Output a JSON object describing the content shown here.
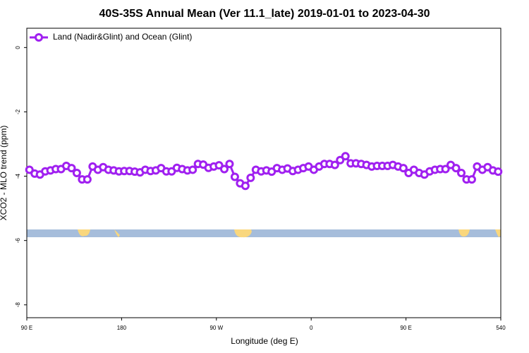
{
  "chart_data": {
    "type": "line",
    "title": "40S-35S Annual Mean (Ver 11.1_late)   2019-01-01 to 2023-04-30",
    "xlabel": "Longitude (deg E)",
    "ylabel": "XCO2 - MLO trend (ppm)",
    "x": [
      92.5,
      97.5,
      102.5,
      107.5,
      112.5,
      117.5,
      122.5,
      127.5,
      132.5,
      137.5,
      142.5,
      147.5,
      152.5,
      157.5,
      162.5,
      167.5,
      172.5,
      177.5,
      182.5,
      187.5,
      192.5,
      197.5,
      202.5,
      207.5,
      212.5,
      217.5,
      222.5,
      227.5,
      232.5,
      237.5,
      242.5,
      247.5,
      252.5,
      257.5,
      262.5,
      267.5,
      272.5,
      277.5,
      282.5,
      287.5,
      292.5,
      297.5,
      302.5,
      307.5,
      312.5,
      317.5,
      322.5,
      327.5,
      332.5,
      337.5,
      342.5,
      347.5,
      352.5,
      357.5,
      362.5,
      367.5,
      372.5,
      377.5,
      382.5,
      387.5,
      392.5,
      397.5,
      402.5,
      407.5,
      412.5,
      417.5,
      422.5,
      427.5,
      432.5,
      437.5,
      442.5,
      447.5,
      452.5,
      457.5,
      462.5,
      467.5,
      472.5,
      477.5,
      482.5,
      487.5,
      492.5,
      497.5,
      502.5,
      507.5,
      512.5,
      517.5,
      522.5,
      527.5,
      532.5,
      537.5
    ],
    "series": [
      {
        "name": "Land (Nadir&Glint) and Ocean (Glint)",
        "color": "#a020f0",
        "values": [
          -3.8,
          -3.92,
          -3.95,
          -3.85,
          -3.82,
          -3.78,
          -3.78,
          -3.68,
          -3.75,
          -3.9,
          -4.1,
          -4.1,
          -3.7,
          -3.8,
          -3.72,
          -3.8,
          -3.82,
          -3.85,
          -3.84,
          -3.84,
          -3.86,
          -3.88,
          -3.8,
          -3.84,
          -3.82,
          -3.75,
          -3.85,
          -3.85,
          -3.74,
          -3.78,
          -3.82,
          -3.8,
          -3.62,
          -3.64,
          -3.74,
          -3.7,
          -3.66,
          -3.78,
          -3.62,
          -4.02,
          -4.22,
          -4.3,
          -4.05,
          -3.8,
          -3.85,
          -3.82,
          -3.86,
          -3.75,
          -3.8,
          -3.76,
          -3.84,
          -3.8,
          -3.75,
          -3.7,
          -3.8,
          -3.7,
          -3.62,
          -3.62,
          -3.65,
          -3.5,
          -3.38,
          -3.6,
          -3.6,
          -3.62,
          -3.65,
          -3.7,
          -3.68,
          -3.68,
          -3.68,
          -3.65,
          -3.7,
          -3.75,
          -3.9,
          -3.8,
          -3.9,
          -3.95,
          -3.85,
          -3.8,
          -3.78,
          -3.78,
          -3.65,
          -3.75,
          -3.9,
          -4.1,
          -4.1,
          -3.7,
          -3.8,
          -3.72,
          -3.82,
          -3.86
        ]
      }
    ],
    "xlim": [
      90,
      540
    ],
    "xticks": [
      {
        "value": 90,
        "label": "90 E"
      },
      180,
      {
        "value": 270,
        "label": "90 W"
      },
      {
        "value": 360,
        "label": "0"
      },
      {
        "value": 450,
        "label": "90 E"
      },
      540
    ],
    "ylim": [
      -8.4,
      0.6
    ],
    "yticks": [
      0,
      -2,
      -4,
      -6,
      -8
    ],
    "legend": "upper left"
  }
}
